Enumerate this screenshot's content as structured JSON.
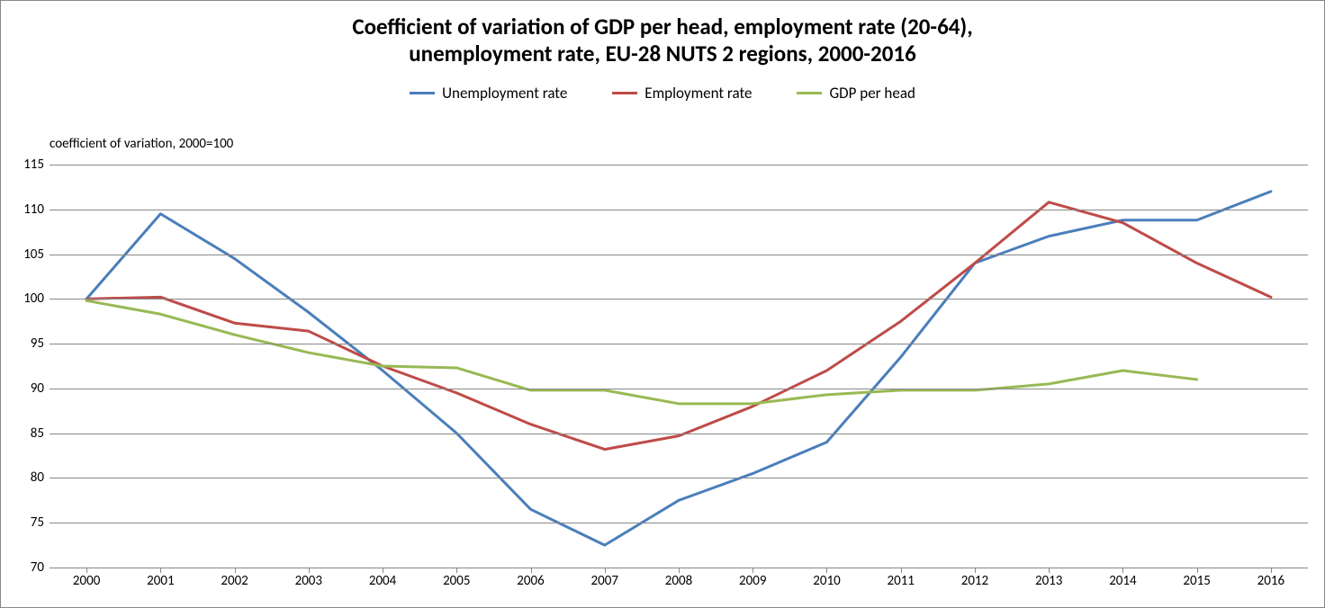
{
  "chart": {
    "type": "line",
    "title_line1": "Coefficient of variation of GDP per head, employment rate (20-64),",
    "title_line2": "unemployment rate, EU-28 NUTS 2 regions, 2000-2016",
    "title_fontsize": 25,
    "axis_subtitle": "coefficient of variation, 2000=100",
    "axis_subtitle_fontsize": 15,
    "legend_fontsize": 17,
    "background_color": "#ffffff",
    "border_color": "#888888",
    "grid_color": "#888888",
    "tick_label_fontsize": 15,
    "line_width": 3,
    "x": {
      "categories": [
        "2000",
        "2001",
        "2002",
        "2003",
        "2004",
        "2005",
        "2006",
        "2007",
        "2008",
        "2009",
        "2010",
        "2011",
        "2012",
        "2013",
        "2014",
        "2015",
        "2016"
      ]
    },
    "y": {
      "min": 70,
      "max": 115,
      "tick_step": 5,
      "ticks": [
        70,
        75,
        80,
        85,
        90,
        95,
        100,
        105,
        110,
        115
      ]
    },
    "series": [
      {
        "name": "Unemployment rate",
        "color": "#4a7ebb",
        "values": [
          100,
          109.5,
          104.5,
          98.5,
          92,
          85,
          76.5,
          72.5,
          77.5,
          80.5,
          84,
          93.5,
          104,
          107,
          108.8,
          108.8,
          112
        ]
      },
      {
        "name": "Employment rate",
        "color": "#be4b48",
        "values": [
          100,
          100.2,
          97.3,
          96.4,
          92.5,
          89.5,
          86,
          83.2,
          84.7,
          88,
          92,
          97.5,
          104,
          110.8,
          108.5,
          104,
          100.2
        ]
      },
      {
        "name": "GDP per head",
        "color": "#98b954",
        "values": [
          99.8,
          98.3,
          96,
          94,
          92.5,
          92.3,
          89.8,
          89.8,
          88.3,
          88.3,
          89.3,
          89.8,
          89.8,
          90.5,
          92,
          91,
          null
        ]
      }
    ]
  }
}
